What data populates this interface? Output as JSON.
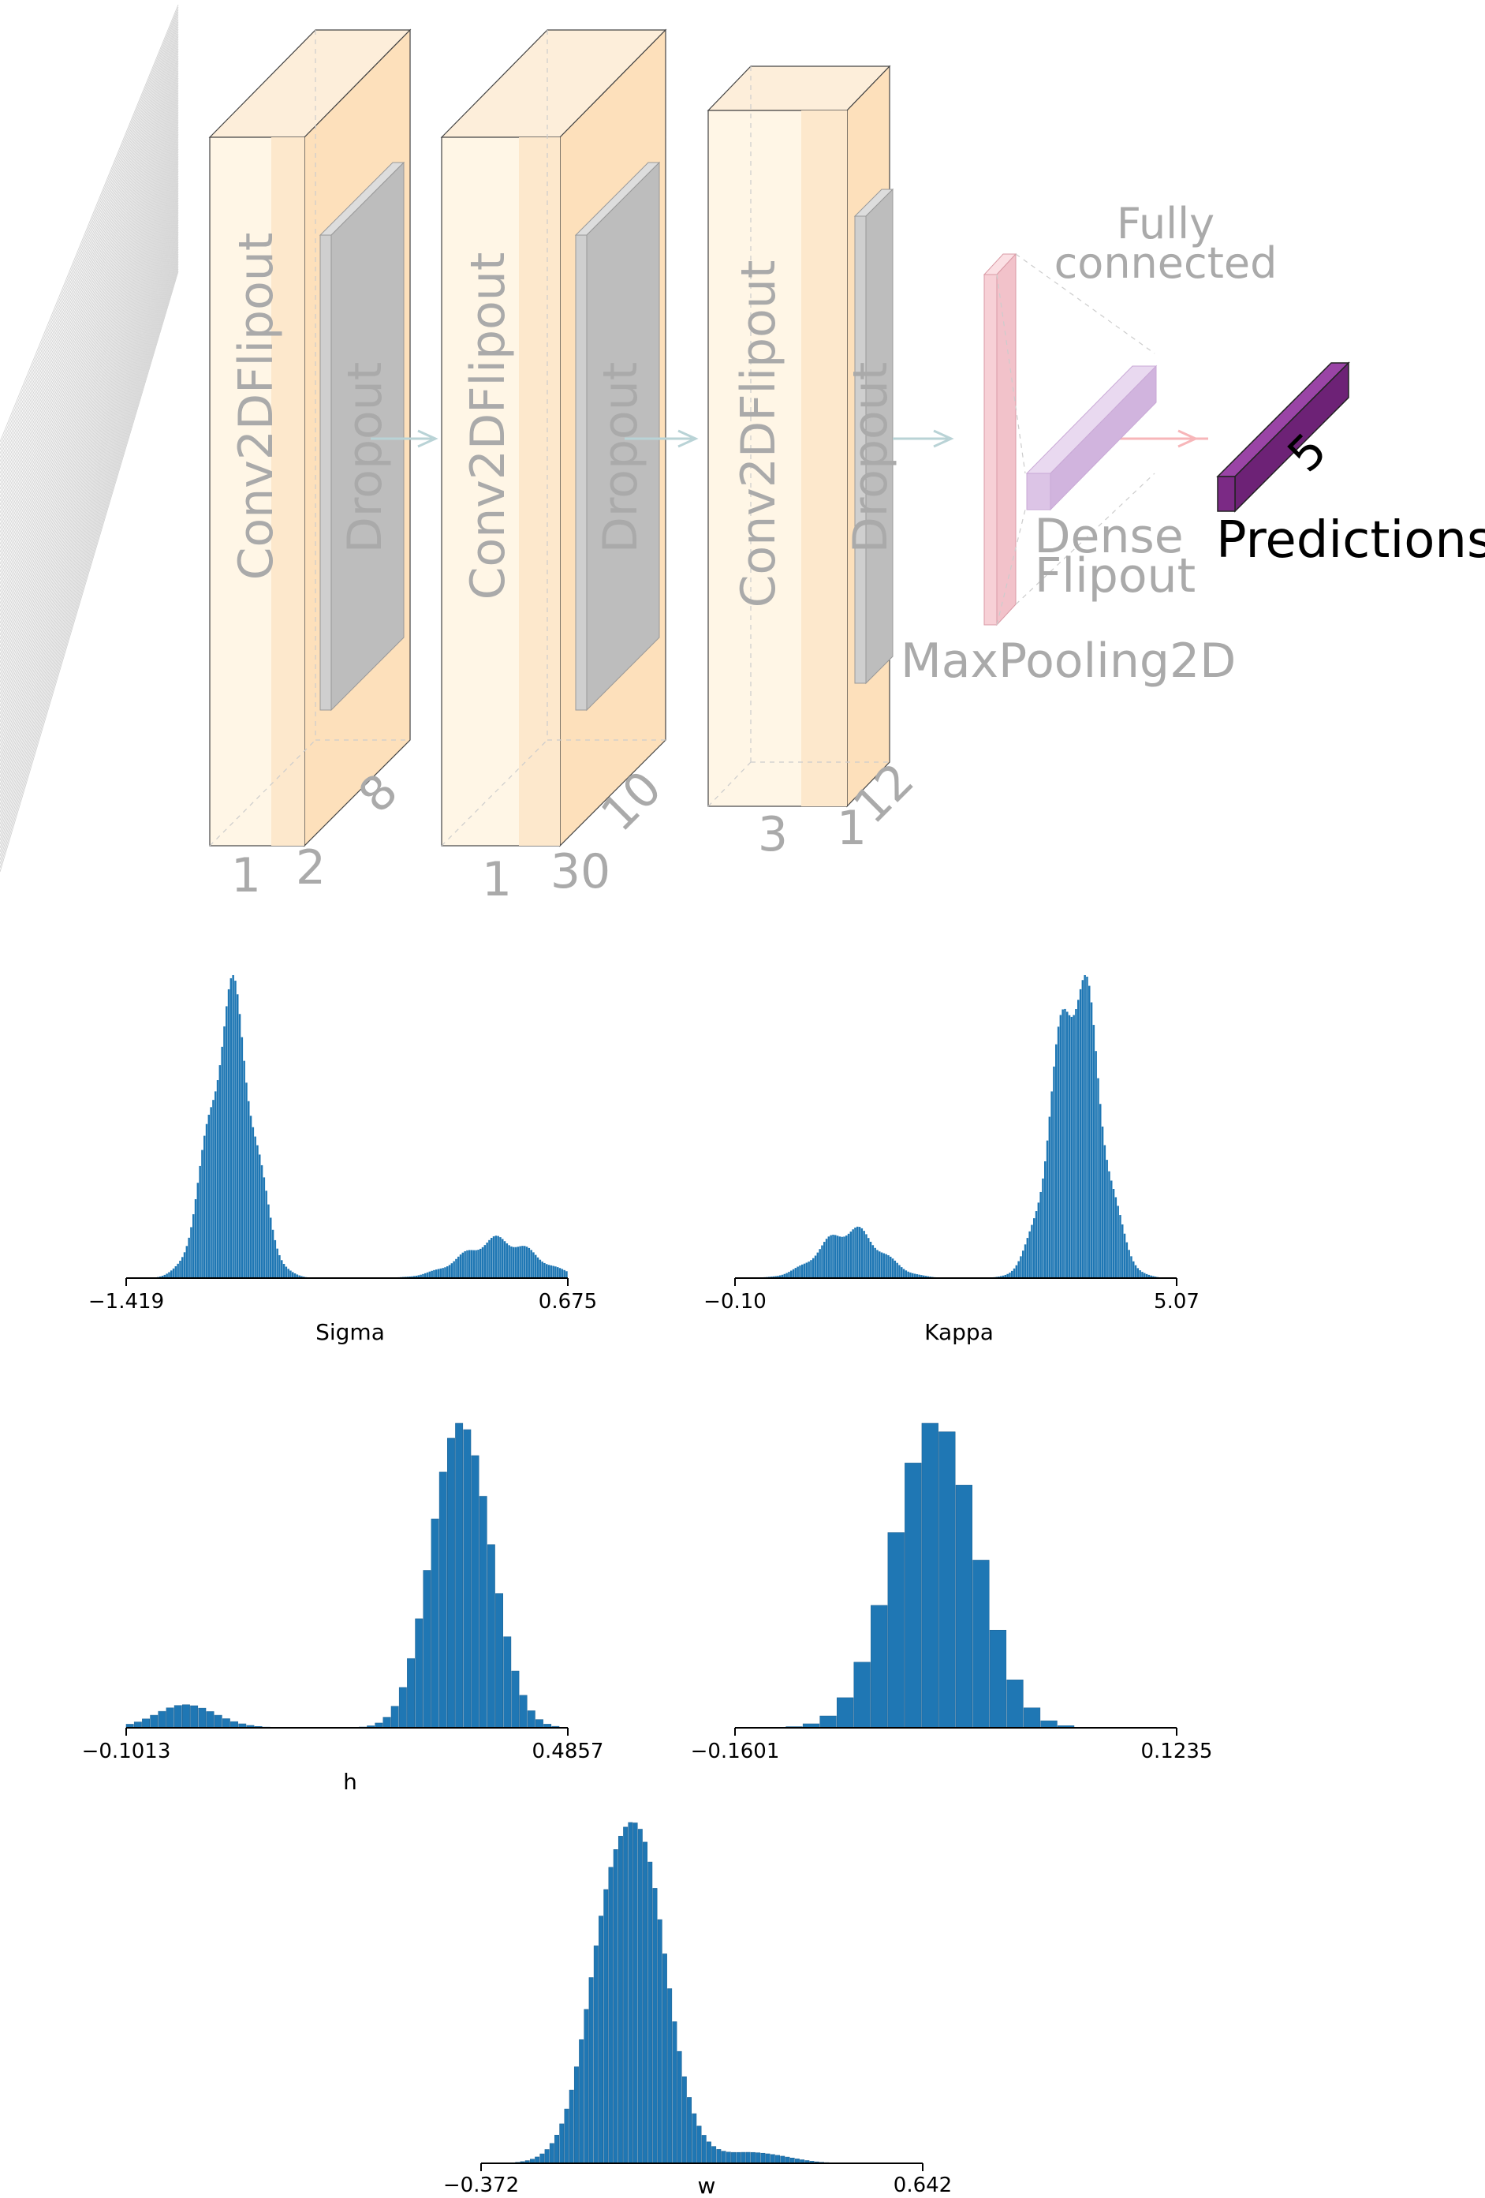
{
  "diagram": {
    "blocks": [
      {
        "main": "Conv2DFlipout",
        "inner": "Dropout",
        "dims": [
          "1",
          "2",
          "8"
        ]
      },
      {
        "main": "Conv2DFlipout",
        "inner": "Dropout",
        "dims": [
          "1",
          "30",
          "10"
        ]
      },
      {
        "main": "Conv2DFlipout",
        "inner": "Dropout",
        "dims": [
          "3",
          "1",
          "12"
        ]
      }
    ],
    "maxpool_label": "MaxPooling2D",
    "fc_label_line1": "Fully",
    "fc_label_line2": "connected",
    "dense_label_line1": "Dense",
    "dense_label_line2": "Flipout",
    "output_dim": "5",
    "output_label": "Predictions",
    "colors": {
      "conv_front": "#fff6e6",
      "conv_side": "#fde0bb",
      "conv_band": "#fde8cc",
      "dropout": "#c9c9c9",
      "maxpool": "#f7d0d6",
      "dense": "#dcc4e6",
      "output": "#7b2a85",
      "arrow_teal": "#b9d3d6",
      "arrow_pink": "#f7b6b9",
      "text_grey": "#aaaaaa"
    }
  },
  "chart_data": [
    {
      "type": "bar",
      "xlabel": "Sigma",
      "xlim": [
        -1.419,
        0.675
      ],
      "xticks": [
        "−1.419",
        "0.675"
      ],
      "components": [
        {
          "mean": -0.92,
          "sd": 0.105,
          "weight": 1.0
        },
        {
          "mean": 0.35,
          "sd": 0.17,
          "weight": 0.14
        }
      ],
      "peak": 1.0,
      "bins": 200,
      "color": "#1f77b4"
    },
    {
      "type": "bar",
      "xlabel": "Kappa",
      "xlim": [
        -0.1,
        5.07
      ],
      "xticks": [
        "−0.10",
        "5.07"
      ],
      "components": [
        {
          "mean": 1.25,
          "sd": 0.35,
          "weight": 0.16
        },
        {
          "mean": 3.9,
          "sd": 0.28,
          "weight": 1.0
        }
      ],
      "peak": 1.0,
      "bins": 200,
      "color": "#1f77b4"
    },
    {
      "type": "bar",
      "xlabel": "h",
      "xlim": [
        -0.1013,
        0.4857
      ],
      "xticks": [
        "−0.1013",
        "0.4857"
      ],
      "components": [
        {
          "mean": -0.02,
          "sd": 0.04,
          "weight": 0.07
        },
        {
          "mean": 0.345,
          "sd": 0.038,
          "weight": 1.0
        }
      ],
      "peak": 1.0,
      "bins": 55,
      "color": "#1f77b4"
    },
    {
      "type": "bar",
      "xlabel": "",
      "xlim": [
        -0.1601,
        0.1235
      ],
      "xticks": [
        "−0.1601",
        "0.1235"
      ],
      "components": [
        {
          "mean": -0.032,
          "sd": 0.027,
          "weight": 1.0
        }
      ],
      "peak": 1.0,
      "bins": 26,
      "color": "#1f77b4"
    },
    {
      "type": "bar",
      "xlabel": "w",
      "xlim": [
        -0.372,
        0.642
      ],
      "xticks": [
        "−0.372",
        "0.642"
      ],
      "components": [
        {
          "mean": -0.03,
          "sd": 0.075,
          "weight": 1.0
        },
        {
          "mean": 0.26,
          "sd": 0.07,
          "weight": 0.03
        }
      ],
      "peak": 1.0,
      "bins": 90,
      "color": "#1f77b4"
    }
  ]
}
